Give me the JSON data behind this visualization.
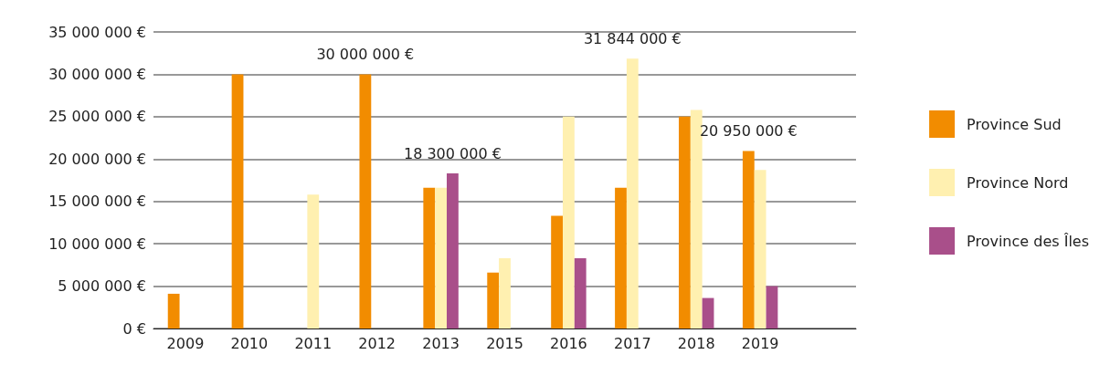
{
  "chart_data": {
    "type": "bar",
    "categories": [
      "2009",
      "2010",
      "2011",
      "2012",
      "2013",
      "2015",
      "2016",
      "2017",
      "2018",
      "2019",
      null
    ],
    "series": [
      {
        "name": "Province Sud",
        "color": "#f28c00",
        "values": [
          4100000,
          30000000,
          null,
          30000000,
          16600000,
          6600000,
          13300000,
          16600000,
          25000000,
          20950000,
          null
        ],
        "value_labels": [
          null,
          null,
          null,
          "30 000 000 €",
          null,
          null,
          null,
          null,
          null,
          "20 950 000 €",
          null
        ]
      },
      {
        "name": "Province Nord",
        "color": "#fff0b0",
        "values": [
          null,
          null,
          15800000,
          null,
          16600000,
          8300000,
          25000000,
          31844000,
          25800000,
          18700000,
          null
        ],
        "value_labels": [
          null,
          null,
          null,
          null,
          null,
          null,
          null,
          "31 844 000 €",
          null,
          null,
          null
        ]
      },
      {
        "name": "Province des Îles",
        "color": "#a94f8a",
        "values": [
          null,
          null,
          null,
          null,
          18300000,
          null,
          8300000,
          null,
          3600000,
          5000000,
          null
        ],
        "value_labels": [
          null,
          null,
          null,
          null,
          "18 300 000 €",
          null,
          null,
          null,
          null,
          null,
          null
        ]
      }
    ],
    "ylim": [
      0,
      35000000
    ],
    "yticks": [
      {
        "value": 0,
        "label": "0 €"
      },
      {
        "value": 5000000,
        "label": "5 000 000 €"
      },
      {
        "value": 10000000,
        "label": "10 000 000 €"
      },
      {
        "value": 15000000,
        "label": "15 000 000 €"
      },
      {
        "value": 20000000,
        "label": "20 000 000 €"
      },
      {
        "value": 25000000,
        "label": "25 000 000 €"
      },
      {
        "value": 30000000,
        "label": "30 000 000 €"
      },
      {
        "value": 35000000,
        "label": "35 000 000 €"
      }
    ],
    "grid": "y",
    "legend": "right"
  }
}
